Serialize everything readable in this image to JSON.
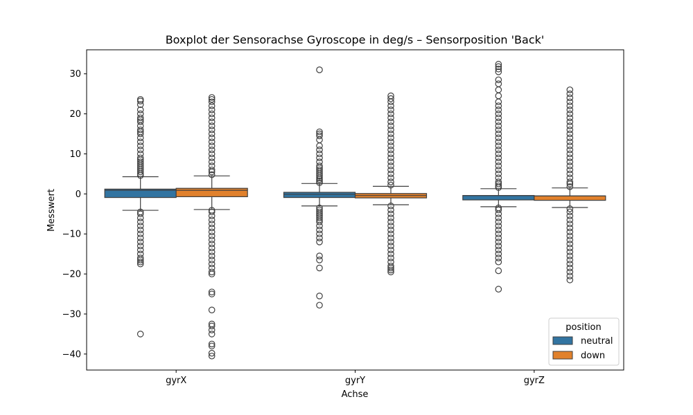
{
  "chart_data": {
    "type": "boxplot",
    "title": "Boxplot der Sensorachse Gyroscope in deg/s – Sensorposition 'Back'",
    "xlabel": "Achse",
    "ylabel": "Messwert",
    "categories": [
      "gyrX",
      "gyrY",
      "gyrZ"
    ],
    "ylim": [
      -44,
      36
    ],
    "yticks": [
      -40,
      -30,
      -20,
      -10,
      0,
      10,
      20,
      30
    ],
    "ytick_labels": [
      "−40",
      "−30",
      "−20",
      "−10",
      "0",
      "10",
      "20",
      "30"
    ],
    "grid": false,
    "legend": {
      "title": "position",
      "location": "lower-right"
    },
    "series": [
      {
        "name": "neutral",
        "color": "#3274a1",
        "boxes": [
          {
            "q1": -0.9,
            "median": 0.9,
            "q3": 1.2,
            "whisker_low": -4.1,
            "whisker_high": 4.3,
            "outliers": [
              -35.0,
              -17.5,
              -17.0,
              -16.5,
              -16.0,
              -15.0,
              -14.0,
              -13.0,
              -12.0,
              -11.0,
              -10.0,
              -9.0,
              -8.0,
              -7.0,
              -6.0,
              -5.0,
              -4.5,
              4.6,
              5.0,
              5.5,
              6.0,
              6.5,
              7.0,
              7.5,
              8.0,
              8.5,
              9.0,
              10.0,
              11.0,
              12.0,
              13.0,
              14.0,
              15.0,
              15.5,
              16.0,
              17.0,
              18.0,
              18.5,
              19.0,
              20.0,
              21.0,
              22.3,
              23.2,
              23.6
            ]
          },
          {
            "q1": -0.9,
            "median": -0.1,
            "q3": 0.4,
            "whisker_low": -3.0,
            "whisker_high": 2.6,
            "outliers": [
              -27.8,
              -25.5,
              -18.5,
              -16.5,
              -15.5,
              -12.0,
              -11.0,
              -10.0,
              -9.0,
              -8.0,
              -7.0,
              -6.5,
              -6.0,
              -5.5,
              -5.0,
              -4.5,
              -4.0,
              -3.5,
              2.8,
              3.2,
              3.6,
              4.0,
              4.5,
              5.0,
              5.5,
              6.0,
              6.5,
              7.0,
              8.0,
              9.0,
              10.0,
              11.0,
              12.0,
              13.5,
              14.5,
              15.0,
              15.5,
              31.0
            ]
          },
          {
            "q1": -1.5,
            "median": -0.4,
            "q3": -0.4,
            "whisker_low": -3.2,
            "whisker_high": 1.3,
            "outliers": [
              -23.8,
              -19.2,
              -17.0,
              -16.0,
              -15.0,
              -14.0,
              -13.0,
              -12.0,
              -11.0,
              -10.0,
              -9.0,
              -8.0,
              -7.0,
              -6.0,
              -5.0,
              -4.0,
              -3.5,
              1.6,
              2.0,
              2.5,
              3.0,
              4.0,
              5.0,
              6.0,
              7.0,
              8.0,
              9.0,
              10.0,
              11.0,
              12.0,
              13.0,
              14.0,
              15.0,
              16.0,
              17.0,
              18.0,
              19.0,
              20.0,
              21.0,
              22.0,
              23.0,
              24.5,
              26.0,
              27.5,
              28.5,
              30.5,
              31.2,
              31.8,
              32.4
            ]
          }
        ]
      },
      {
        "name": "down",
        "color": "#e1812c",
        "boxes": [
          {
            "q1": -0.7,
            "median": 0.9,
            "q3": 1.4,
            "whisker_low": -3.9,
            "whisker_high": 4.5,
            "outliers": [
              -40.5,
              -39.8,
              -38.0,
              -37.5,
              -35.0,
              -34.0,
              -33.0,
              -32.5,
              -29.0,
              -25.0,
              -24.5,
              -20.0,
              -19.5,
              -18.5,
              -17.5,
              -16.5,
              -15.5,
              -14.5,
              -13.5,
              -12.5,
              -11.5,
              -10.5,
              -9.5,
              -8.5,
              -7.5,
              -6.5,
              -5.5,
              -4.5,
              -4.1,
              4.8,
              5.5,
              6.0,
              7.0,
              8.0,
              9.0,
              10.0,
              11.0,
              12.0,
              13.0,
              14.0,
              15.0,
              16.0,
              17.0,
              18.0,
              19.0,
              20.0,
              21.0,
              22.0,
              23.0,
              23.6,
              24.1
            ]
          },
          {
            "q1": -1.0,
            "median": -0.4,
            "q3": 0.1,
            "whisker_low": -2.7,
            "whisker_high": 1.9,
            "outliers": [
              -19.5,
              -19.0,
              -18.5,
              -18.0,
              -17.0,
              -16.0,
              -15.0,
              -14.0,
              -13.0,
              -12.0,
              -11.0,
              -10.0,
              -9.0,
              -8.0,
              -7.0,
              -6.0,
              -5.0,
              -4.0,
              -3.0,
              2.2,
              3.0,
              4.0,
              5.0,
              6.0,
              7.0,
              8.0,
              9.0,
              10.0,
              11.0,
              12.0,
              13.0,
              14.0,
              15.0,
              16.0,
              17.0,
              18.0,
              19.0,
              20.0,
              21.0,
              22.0,
              23.0,
              23.8,
              24.5
            ]
          },
          {
            "q1": -1.6,
            "median": -0.5,
            "q3": -0.5,
            "whisker_low": -3.4,
            "whisker_high": 1.5,
            "outliers": [
              -21.5,
              -20.5,
              -19.5,
              -18.5,
              -17.5,
              -16.5,
              -15.5,
              -14.5,
              -13.5,
              -12.5,
              -11.5,
              -10.5,
              -9.5,
              -8.5,
              -7.5,
              -6.5,
              -5.5,
              -4.5,
              -3.7,
              1.8,
              2.5,
              3.0,
              4.0,
              5.0,
              6.0,
              7.0,
              8.0,
              9.0,
              10.0,
              11.0,
              12.0,
              13.0,
              14.0,
              15.0,
              16.0,
              17.0,
              18.0,
              19.0,
              20.0,
              21.0,
              22.0,
              23.0,
              24.0,
              25.0,
              26.0
            ]
          }
        ]
      }
    ]
  }
}
